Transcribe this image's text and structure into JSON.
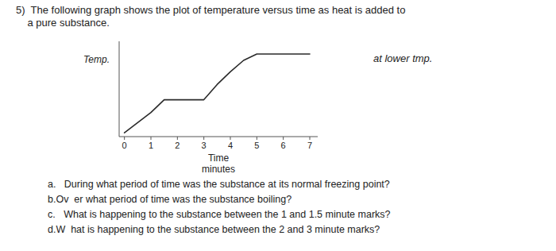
{
  "chart_data": {
    "type": "line",
    "title": [
      "5)  The following graph shows the plot of temperature versus time as heat is added to",
      "    a pure substance."
    ],
    "xlabel": [
      "Time",
      "minutes"
    ],
    "ylabel": "Temp.",
    "annotations": [
      "at lower tmp.",
      "a.   During what period of time was the substance at its normal freezing point?",
      "b.Ov  er what period of time was the substance boiling?",
      "c.   What is happening to the substance between the 1 and 1.5 minute marks?",
      "d.W  hat is happening to the substance between the 2 and 3 minute marks?"
    ],
    "x": [
      0.0,
      1.0,
      1.5,
      2.0,
      3.0,
      3.5,
      4.0,
      4.5,
      5.0,
      5.5,
      6.0,
      7.0
    ],
    "values": [
      0.0,
      0.8,
      1.3,
      1.3,
      1.3,
      1.9,
      2.4,
      2.85,
      3.1,
      3.1,
      3.1,
      3.1
    ],
    "color": "#2a2a2a",
    "xlim": [
      -0.2,
      7.3
    ],
    "ylim": [
      -0.15,
      3.6
    ],
    "xticks": [
      0,
      1,
      2,
      3,
      4,
      5,
      6,
      7
    ],
    "tick_labels": "x"
  }
}
